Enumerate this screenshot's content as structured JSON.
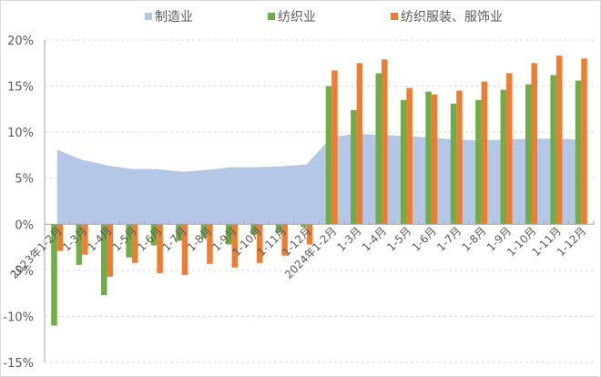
{
  "chart_data": {
    "type": "bar+area",
    "title": "",
    "xlabel": "",
    "ylabel": "",
    "ylim": [
      -15,
      20
    ],
    "yticks": [
      20,
      15,
      10,
      5,
      0,
      -5,
      -10,
      -15
    ],
    "ytick_labels": [
      "20%",
      "15%",
      "10%",
      "5%",
      "0%",
      "-5%",
      "-10%",
      "-15%"
    ],
    "grid": "horizontal dashed",
    "legend_position": "top",
    "categories": [
      "2023年1-2月",
      "1-3月",
      "1-4月",
      "1-5月",
      "1-6月",
      "1-7月",
      "1-8月",
      "1-9月",
      "1-10月",
      "1-11月",
      "1-12月",
      "2024年1-2月",
      "1-3月",
      "1-4月",
      "1-5月",
      "1-6月",
      "1-7月",
      "1-8月",
      "1-9月",
      "1-10月",
      "1-11月",
      "1-12月"
    ],
    "series": [
      {
        "name": "制造业",
        "type": "area",
        "color": "#b4c7e7",
        "values": [
          8.1,
          7.0,
          6.4,
          6.0,
          6.0,
          5.7,
          5.9,
          6.2,
          6.2,
          6.3,
          6.5,
          9.5,
          9.8,
          9.7,
          9.6,
          9.4,
          9.2,
          9.1,
          9.2,
          9.3,
          9.3,
          9.2
        ]
      },
      {
        "name": "纺织业",
        "type": "bar",
        "color": "#70ad47",
        "values": [
          -11.0,
          -4.4,
          -7.7,
          -3.6,
          -2.3,
          -1.8,
          -1.5,
          -2.2,
          -1.1,
          -0.9,
          -0.3,
          15.0,
          12.4,
          16.4,
          13.5,
          14.4,
          13.1,
          13.5,
          14.6,
          15.2,
          16.2,
          15.6
        ]
      },
      {
        "name": "纺织服装、服饰业",
        "type": "bar",
        "color": "#ed7d31",
        "values": [
          -2.9,
          -3.3,
          -5.7,
          -4.2,
          -5.3,
          -5.5,
          -4.3,
          -4.7,
          -4.2,
          -3.4,
          -2.2,
          16.7,
          17.5,
          17.9,
          14.8,
          14.1,
          14.5,
          15.5,
          16.4,
          17.5,
          18.3,
          18.0
        ]
      }
    ]
  },
  "legend": {
    "items": [
      {
        "label": "制造业",
        "color": "#b4c7e7"
      },
      {
        "label": "纺织业",
        "color": "#70ad47"
      },
      {
        "label": "纺织服装、服饰业",
        "color": "#ed7d31"
      }
    ]
  },
  "colors": {
    "axis": "#a6a6a6",
    "grid": "#d9d9d9",
    "text": "#595959"
  }
}
